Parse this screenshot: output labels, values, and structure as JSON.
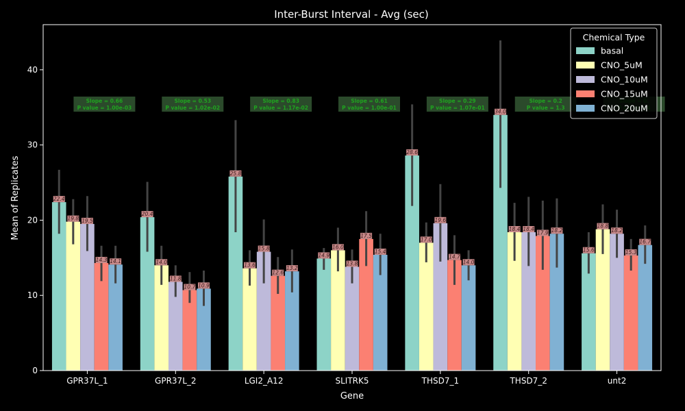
{
  "chart_data": {
    "type": "bar",
    "title": "Inter-Burst Interval - Avg (sec)",
    "xlabel": "Gene",
    "ylabel": "Mean of Replicates",
    "ylim": [
      0,
      46
    ],
    "yticks": [
      0,
      10,
      20,
      30,
      40
    ],
    "grid": false,
    "legend_position": "top-right",
    "legend_title": "Chemical Type",
    "categories": [
      "GPR37L_1",
      "GPR37L_2",
      "LGI2_A12",
      "SLITRK5",
      "THSD7_1",
      "THSD7_2",
      "unt2"
    ],
    "series": [
      {
        "name": "basal",
        "color": "#8dd3c7",
        "values": [
          22.4,
          20.4,
          25.8,
          14.9,
          28.6,
          34.0,
          15.6
        ],
        "labels": [
          "22.4",
          "20.4",
          "25.8",
          "14.9",
          "28.6",
          "34.0",
          "15.6"
        ],
        "err": [
          [
            18.2,
            26.7
          ],
          [
            15.8,
            25.1
          ],
          [
            18.4,
            33.3
          ],
          [
            13.4,
            16.3
          ],
          [
            21.9,
            35.4
          ],
          [
            24.3,
            43.9
          ],
          [
            12.9,
            18.4
          ]
        ]
      },
      {
        "name": "CNO_5uM",
        "color": "#ffffb3",
        "values": [
          19.8,
          14.0,
          13.6,
          16.0,
          17.0,
          18.4,
          18.8
        ],
        "labels": [
          "19.8",
          "14.0",
          "13.6",
          "16.0",
          "17.0",
          "18.4",
          "18.8"
        ],
        "err": [
          [
            16.8,
            22.8
          ],
          [
            11.4,
            16.6
          ],
          [
            11.3,
            16.0
          ],
          [
            13.2,
            19.0
          ],
          [
            14.4,
            19.7
          ],
          [
            14.6,
            22.3
          ],
          [
            15.5,
            22.1
          ]
        ]
      },
      {
        "name": "CNO_10uM",
        "color": "#bebada",
        "values": [
          19.5,
          11.8,
          15.8,
          13.8,
          19.6,
          18.4,
          18.2
        ],
        "labels": [
          "19.5",
          "11.8",
          "15.8",
          "13.8",
          "19.6",
          "18.4",
          "18.2"
        ],
        "err": [
          [
            15.9,
            23.2
          ],
          [
            9.8,
            14.0
          ],
          [
            11.6,
            20.1
          ],
          [
            11.6,
            16.1
          ],
          [
            14.5,
            24.8
          ],
          [
            13.9,
            23.1
          ],
          [
            15.0,
            21.4
          ]
        ]
      },
      {
        "name": "CNO_15uM",
        "color": "#fb8072",
        "values": [
          14.3,
          10.7,
          12.6,
          17.5,
          14.7,
          17.9,
          15.3
        ],
        "labels": [
          "14.3",
          "10.7",
          "12.6",
          "17.5",
          "14.7",
          "17.9",
          "15.3"
        ],
        "err": [
          [
            11.9,
            16.6
          ],
          [
            9.0,
            13.1
          ],
          [
            10.2,
            15.1
          ],
          [
            13.9,
            21.2
          ],
          [
            11.4,
            18.0
          ],
          [
            13.4,
            22.6
          ],
          [
            13.3,
            17.5
          ]
        ]
      },
      {
        "name": "CNO_20uM",
        "color": "#80b1d3",
        "values": [
          14.1,
          10.9,
          13.2,
          15.4,
          14.0,
          18.2,
          16.7
        ],
        "labels": [
          "14.1",
          "10.9",
          "13.2",
          "15.4",
          "14.0",
          "18.2",
          "16.7"
        ],
        "err": [
          [
            11.6,
            16.6
          ],
          [
            8.6,
            13.3
          ],
          [
            10.4,
            16.1
          ],
          [
            12.7,
            18.2
          ],
          [
            12.0,
            16.0
          ],
          [
            13.7,
            22.9
          ],
          [
            14.2,
            19.3
          ]
        ]
      }
    ],
    "annotations": [
      {
        "line1": "Slope = 0.66",
        "line2": "P value = 1.00e-03"
      },
      {
        "line1": "Slope = 0.53",
        "line2": "P value = 1.02e-02"
      },
      {
        "line1": "Slope = 0.83",
        "line2": "P value = 1.17e-02"
      },
      {
        "line1": "Slope = 0.61",
        "line2": "P value = 1.00e-01"
      },
      {
        "line1": "Slope = 0.29",
        "line2": "P value = 1.07e-01"
      },
      {
        "line1": "Slope = 0.2",
        "line2": "P value = 1.3"
      },
      {
        "line1": "Slope = 0.",
        "line2": "P value = 4"
      }
    ],
    "annotation_style": {
      "background": "#2b4a2b",
      "color": "#1fa31f"
    },
    "value_label_style": {
      "background": "#c88a8a",
      "color": "#3a1a1a"
    }
  }
}
